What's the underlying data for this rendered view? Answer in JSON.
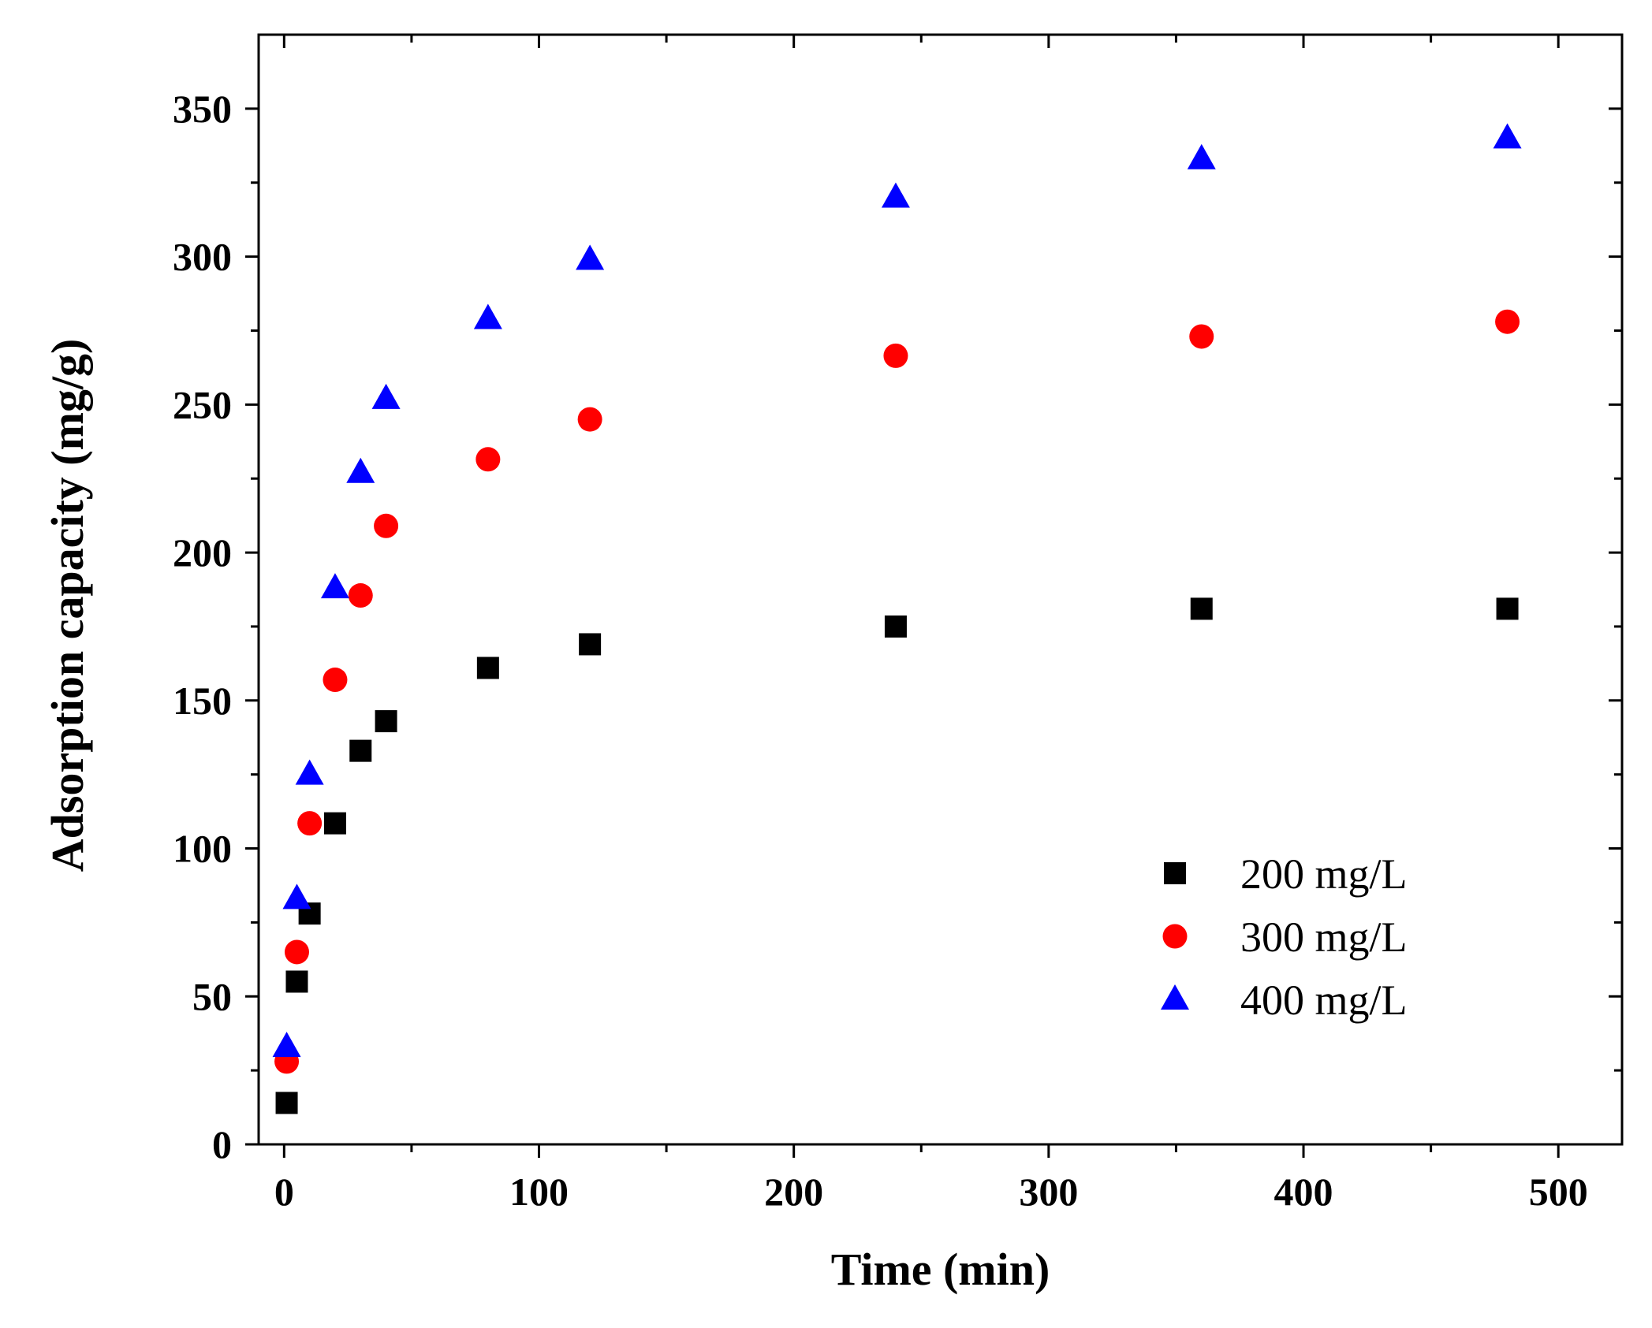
{
  "chart_data": {
    "type": "scatter",
    "title": "",
    "xlabel": "Time (min)",
    "ylabel": "Adsorption capacity (mg/g)",
    "xlim": [
      -10,
      525
    ],
    "ylim": [
      0,
      375
    ],
    "xticks": [
      0,
      100,
      200,
      300,
      400,
      500
    ],
    "yticks": [
      0,
      50,
      100,
      150,
      200,
      250,
      300,
      350
    ],
    "grid": false,
    "legend_position": "bottom-right",
    "series": [
      {
        "name": "200 mg/L",
        "marker": "square",
        "color": "#000000",
        "x": [
          1,
          5,
          10,
          20,
          30,
          40,
          80,
          120,
          240,
          360,
          480
        ],
        "y": [
          14,
          55,
          78,
          108.5,
          133,
          143,
          161,
          169,
          175,
          181,
          181
        ]
      },
      {
        "name": "300 mg/L",
        "marker": "circle",
        "color": "#ff0000",
        "x": [
          1,
          5,
          10,
          20,
          30,
          40,
          80,
          120,
          240,
          360,
          480
        ],
        "y": [
          28,
          65,
          108.5,
          157,
          185.5,
          209,
          231.5,
          245,
          266.5,
          273,
          278
        ]
      },
      {
        "name": "400 mg/L",
        "marker": "triangle",
        "color": "#0000ff",
        "x": [
          1,
          5,
          10,
          20,
          30,
          40,
          80,
          120,
          240,
          360,
          480
        ],
        "y": [
          33,
          83,
          125,
          188,
          227,
          252,
          279,
          299,
          320,
          333,
          340
        ]
      }
    ]
  }
}
